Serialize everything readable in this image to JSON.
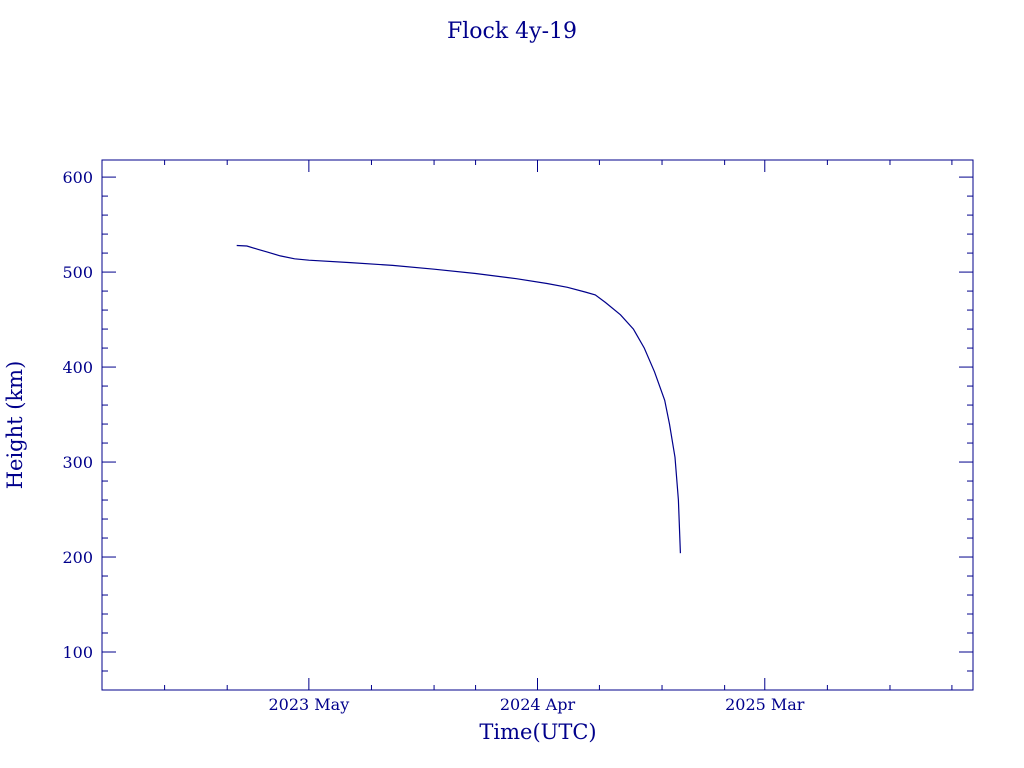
{
  "chart_data": {
    "type": "line",
    "title": "Flock 4y-19",
    "xlabel": "Time(UTC)",
    "ylabel": "Height (km)",
    "x_scale": "date",
    "xlim": [
      "2022-07-01",
      "2026-01-01"
    ],
    "ylim": [
      60,
      618
    ],
    "x_ticks": [
      {
        "date": "2023-05-01",
        "label": "2023 May"
      },
      {
        "date": "2024-04-01",
        "label": "2024 Apr"
      },
      {
        "date": "2025-03-01",
        "label": "2025 Mar"
      }
    ],
    "x_minor_ticks": [
      "2022-10-01",
      "2023-01-01",
      "2023-08-01",
      "2023-11-01",
      "2024-01-01",
      "2024-07-01",
      "2024-10-01",
      "2025-01-01",
      "2025-06-01",
      "2025-09-01",
      "2025-12-01"
    ],
    "y_ticks": [
      100,
      200,
      300,
      400,
      500,
      600
    ],
    "grid": false,
    "colors": {
      "axis": "#00008b",
      "line": "#00008b"
    },
    "series": [
      {
        "points": [
          {
            "x": "2023-01-15",
            "y": 528
          },
          {
            "x": "2023-01-30",
            "y": 527.5
          },
          {
            "x": "2023-02-15",
            "y": 524
          },
          {
            "x": "2023-03-01",
            "y": 521
          },
          {
            "x": "2023-03-20",
            "y": 517
          },
          {
            "x": "2023-04-10",
            "y": 514
          },
          {
            "x": "2023-05-01",
            "y": 512.5
          },
          {
            "x": "2023-07-01",
            "y": 510
          },
          {
            "x": "2023-09-01",
            "y": 507
          },
          {
            "x": "2023-11-01",
            "y": 503
          },
          {
            "x": "2024-01-01",
            "y": 498.5
          },
          {
            "x": "2024-03-01",
            "y": 493
          },
          {
            "x": "2024-04-15",
            "y": 488
          },
          {
            "x": "2024-05-15",
            "y": 484
          },
          {
            "x": "2024-06-10",
            "y": 479
          },
          {
            "x": "2024-06-25",
            "y": 476
          },
          {
            "x": "2024-07-10",
            "y": 468
          },
          {
            "x": "2024-08-01",
            "y": 455
          },
          {
            "x": "2024-08-20",
            "y": 440
          },
          {
            "x": "2024-09-05",
            "y": 420
          },
          {
            "x": "2024-09-20",
            "y": 395
          },
          {
            "x": "2024-10-05",
            "y": 365
          },
          {
            "x": "2024-10-12",
            "y": 340
          },
          {
            "x": "2024-10-20",
            "y": 305
          },
          {
            "x": "2024-10-25",
            "y": 260
          },
          {
            "x": "2024-10-28",
            "y": 204
          }
        ]
      }
    ]
  }
}
